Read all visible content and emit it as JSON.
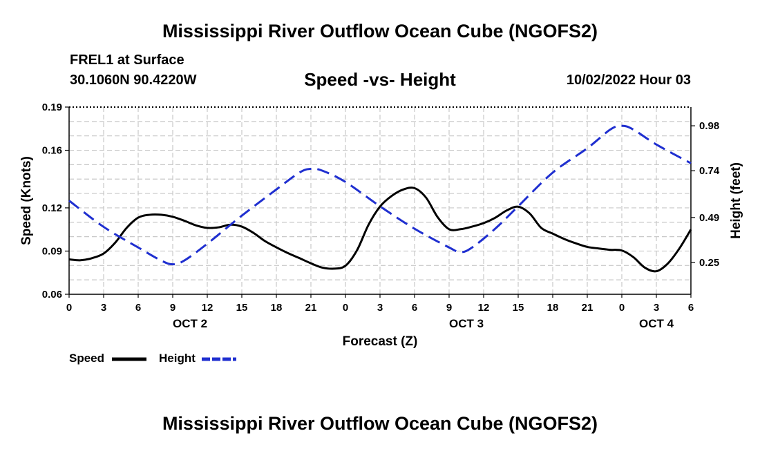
{
  "header": {
    "title": "Mississippi River Outflow Ocean Cube (NGOFS2)",
    "station": "FREL1 at Surface",
    "coords": "30.1060N  90.4220W",
    "subtitle": "Speed -vs- Height",
    "datetime": "10/02/2022 Hour 03"
  },
  "footer": {
    "title": "Mississippi River Outflow Ocean Cube (NGOFS2)"
  },
  "legend": {
    "speed_label": "Speed",
    "height_label": "Height"
  },
  "chart_data": {
    "type": "line",
    "title": "Speed -vs- Height",
    "xlabel": "Forecast (Z)",
    "ylabel_left": "Speed (Knots)",
    "ylabel_right": "Height (feet)",
    "x_range_hours": [
      0,
      54
    ],
    "x_tick_labels": [
      "0",
      "3",
      "6",
      "9",
      "12",
      "15",
      "18",
      "21",
      "0",
      "3",
      "6",
      "9",
      "12",
      "15",
      "18",
      "21",
      "0",
      "3",
      "6"
    ],
    "day_labels": [
      {
        "hour": 10.5,
        "label": "OCT 2"
      },
      {
        "hour": 34.5,
        "label": "OCT 3"
      },
      {
        "hour": 51,
        "label": "OCT 4"
      }
    ],
    "left_axis": {
      "range": [
        0.06,
        0.19
      ],
      "ticks": [
        0.06,
        0.09,
        0.12,
        0.16,
        0.19
      ]
    },
    "right_axis": {
      "range": [
        0.08,
        1.08
      ],
      "ticks": [
        0.25,
        0.49,
        0.74,
        0.98
      ]
    },
    "grid": true,
    "series": [
      {
        "name": "Speed",
        "axis": "left",
        "color": "#000000",
        "style": "solid",
        "points": [
          [
            0,
            0.0842
          ],
          [
            1,
            0.0836
          ],
          [
            2,
            0.0851
          ],
          [
            3,
            0.0883
          ],
          [
            4,
            0.0958
          ],
          [
            5,
            0.1061
          ],
          [
            6,
            0.1132
          ],
          [
            7,
            0.1152
          ],
          [
            8,
            0.1152
          ],
          [
            9,
            0.1138
          ],
          [
            10,
            0.1111
          ],
          [
            11,
            0.1079
          ],
          [
            12,
            0.1061
          ],
          [
            13,
            0.1065
          ],
          [
            14,
            0.1083
          ],
          [
            15,
            0.107
          ],
          [
            16,
            0.1027
          ],
          [
            17,
            0.097
          ],
          [
            18,
            0.0926
          ],
          [
            19,
            0.0886
          ],
          [
            20,
            0.0851
          ],
          [
            21,
            0.0815
          ],
          [
            22,
            0.0785
          ],
          [
            23,
            0.0778
          ],
          [
            24,
            0.0798
          ],
          [
            25,
            0.0905
          ],
          [
            26,
            0.1082
          ],
          [
            27,
            0.1209
          ],
          [
            28,
            0.1282
          ],
          [
            29,
            0.1327
          ],
          [
            30,
            0.1337
          ],
          [
            31,
            0.1271
          ],
          [
            32,
            0.1136
          ],
          [
            33,
            0.1052
          ],
          [
            34,
            0.1052
          ],
          [
            35,
            0.107
          ],
          [
            36,
            0.1094
          ],
          [
            37,
            0.1131
          ],
          [
            38,
            0.1182
          ],
          [
            39,
            0.1208
          ],
          [
            40,
            0.1161
          ],
          [
            41,
            0.1061
          ],
          [
            42,
            0.1021
          ],
          [
            43,
            0.0984
          ],
          [
            44,
            0.0954
          ],
          [
            45,
            0.0929
          ],
          [
            46,
            0.0918
          ],
          [
            47,
            0.0909
          ],
          [
            48,
            0.0904
          ],
          [
            49,
            0.0858
          ],
          [
            50,
            0.0785
          ],
          [
            51,
            0.076
          ],
          [
            52,
            0.0814
          ],
          [
            53,
            0.0918
          ],
          [
            54,
            0.105
          ]
        ]
      },
      {
        "name": "Height",
        "axis": "right",
        "color": "#1f2fd0",
        "style": "dashed",
        "points": [
          [
            0,
            0.58
          ],
          [
            3,
            0.44
          ],
          [
            6,
            0.33
          ],
          [
            8,
            0.26
          ],
          [
            9,
            0.24
          ],
          [
            10,
            0.26
          ],
          [
            12,
            0.35
          ],
          [
            15,
            0.5
          ],
          [
            18,
            0.64
          ],
          [
            20,
            0.73
          ],
          [
            21,
            0.75
          ],
          [
            22,
            0.74
          ],
          [
            24,
            0.68
          ],
          [
            27,
            0.55
          ],
          [
            30,
            0.43
          ],
          [
            33,
            0.33
          ],
          [
            34,
            0.305
          ],
          [
            35,
            0.33
          ],
          [
            37,
            0.43
          ],
          [
            39,
            0.55
          ],
          [
            42,
            0.73
          ],
          [
            45,
            0.86
          ],
          [
            47,
            0.96
          ],
          [
            48,
            0.98
          ],
          [
            49,
            0.96
          ],
          [
            51,
            0.88
          ],
          [
            54,
            0.78
          ]
        ]
      }
    ]
  }
}
